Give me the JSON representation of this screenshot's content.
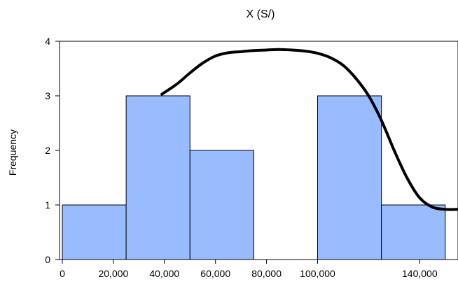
{
  "chart_data": {
    "type": "bar",
    "title": "X (S/)",
    "xlabel": "",
    "ylabel": "Frequency",
    "xlim": [
      0,
      155000
    ],
    "ylim": [
      0,
      4
    ],
    "y_ticks": [
      0,
      1,
      2,
      3,
      4
    ],
    "x_ticks": [
      {
        "value": 0,
        "label": "0"
      },
      {
        "value": 20000,
        "label": "20,000"
      },
      {
        "value": 40000,
        "label": "40,000"
      },
      {
        "value": 60000,
        "label": "60,000"
      },
      {
        "value": 80000,
        "label": "80,000"
      },
      {
        "value": 100000,
        "label": "100,000"
      },
      {
        "value": 140000,
        "label": "140,000"
      }
    ],
    "bins": [
      {
        "start": 0,
        "end": 25000,
        "count": 1
      },
      {
        "start": 25000,
        "end": 50000,
        "count": 3
      },
      {
        "start": 50000,
        "end": 75000,
        "count": 2
      },
      {
        "start": 75000,
        "end": 100000,
        "count": 0
      },
      {
        "start": 100000,
        "end": 125000,
        "count": 3
      },
      {
        "start": 125000,
        "end": 150000,
        "count": 1
      }
    ],
    "density_curve": {
      "x": [
        39000,
        45000,
        50000,
        55000,
        60000,
        65000,
        70000,
        75000,
        80000,
        85000,
        90000,
        95000,
        100000,
        105000,
        110000,
        115000,
        120000,
        125000,
        130000,
        135000,
        140000,
        145000,
        150000,
        155000
      ],
      "y": [
        3.03,
        3.22,
        3.42,
        3.6,
        3.73,
        3.79,
        3.81,
        3.83,
        3.84,
        3.85,
        3.84,
        3.82,
        3.78,
        3.7,
        3.56,
        3.32,
        3.0,
        2.55,
        2.0,
        1.5,
        1.13,
        0.96,
        0.92,
        0.92
      ]
    },
    "bar_color": "#99bbff",
    "bar_edge_color": "#000000",
    "curve_color": "#000000",
    "grid": false,
    "legend": "none"
  }
}
